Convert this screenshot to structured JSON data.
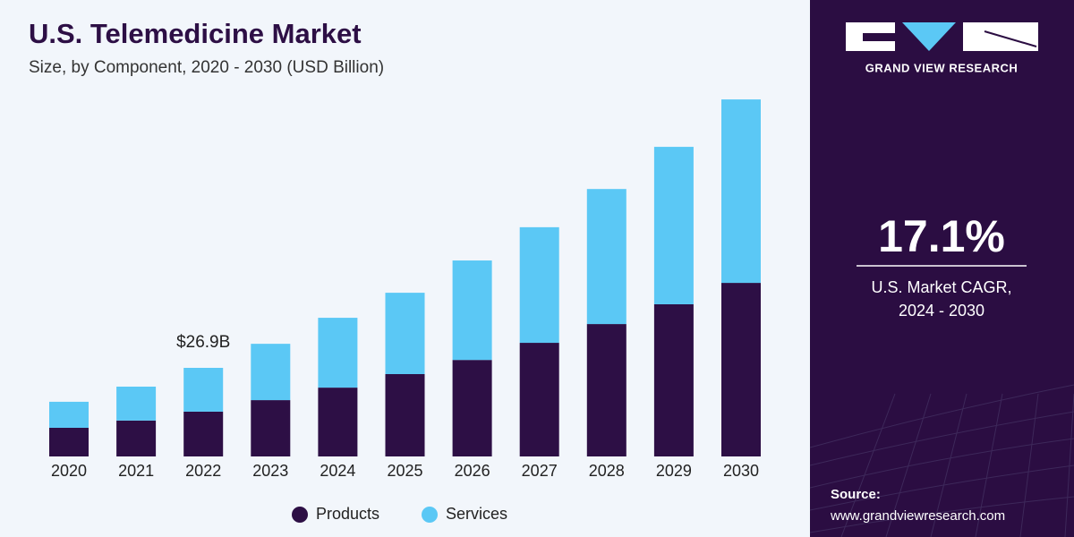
{
  "chart_data": {
    "type": "stacked_bar",
    "title": "U.S. Telemedicine Market",
    "subtitle": "Size, by Component, 2020 - 2030 (USD Billion)",
    "categories": [
      "2020",
      "2021",
      "2022",
      "2023",
      "2024",
      "2025",
      "2026",
      "2027",
      "2028",
      "2029",
      "2030"
    ],
    "series": [
      {
        "name": "Products",
        "color": "#2d0f45",
        "values": [
          8.7,
          10.9,
          13.6,
          17.1,
          20.9,
          25.0,
          29.3,
          34.5,
          40.2,
          46.2,
          52.7
        ]
      },
      {
        "name": "Services",
        "color": "#5bc8f5",
        "values": [
          7.9,
          10.3,
          13.3,
          17.1,
          21.2,
          24.7,
          30.2,
          35.1,
          41.0,
          47.8,
          55.7
        ]
      }
    ],
    "annotations": [
      {
        "category": "2022",
        "value": 26.9,
        "label": "$26.9B"
      }
    ],
    "legend": "bottom"
  },
  "sidebar": {
    "brand": "GRAND VIEW RESEARCH",
    "cagr": "17.1%",
    "cagr_label": [
      "U.S. Market CAGR,",
      "2024 - 2030"
    ],
    "source_title": "Source:",
    "source_url": "www.grandviewresearch.com"
  }
}
